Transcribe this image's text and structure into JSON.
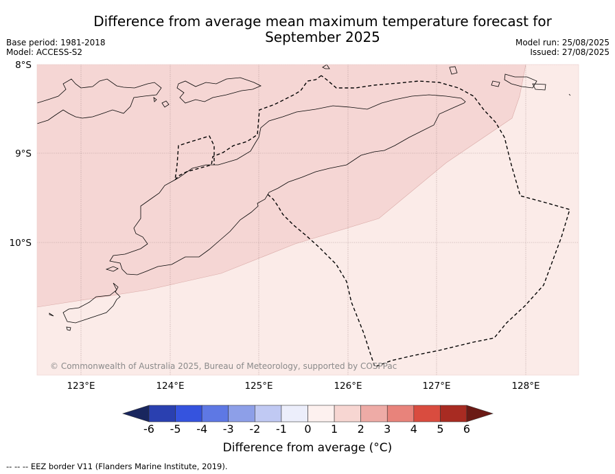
{
  "header": {
    "title_line1": "Difference from average mean maximum temperature forecast for",
    "title_line2": "September 2025",
    "base_period": "Base period: 1981-2018",
    "model": "Model: ACCESS-S2",
    "model_run": "Model run: 25/08/2025",
    "issued": "Issued: 27/08/2025"
  },
  "map": {
    "lat_labels": [
      "8°S",
      "9°S",
      "10°S"
    ],
    "lon_labels": [
      "123°E",
      "124°E",
      "125°E",
      "126°E",
      "127°E",
      "128°E"
    ],
    "copyright": "© Commonwealth of Australia 2025, Bureau of Meteorology, supported by COSPPac",
    "colors": {
      "zone_1_to_2": "#f5d6d4",
      "zone_0_to_1": "#fbebe8",
      "coastline": "#000000",
      "grid": "#b89a9a"
    }
  },
  "colorbar": {
    "tick_labels": [
      "-6",
      "-5",
      "-4",
      "-3",
      "-2",
      "-1",
      "0",
      "1",
      "2",
      "3",
      "4",
      "5",
      "6"
    ],
    "bin_colors": [
      "#19265e",
      "#2a40b0",
      "#3553de",
      "#5e78e4",
      "#8d9fe8",
      "#c0c9f3",
      "#eceefb",
      "#fdf1ef",
      "#f7d6d2",
      "#eeaba6",
      "#e8837b",
      "#d94c3f",
      "#a82b22",
      "#6b1a15"
    ],
    "title": "Difference from average (°C)"
  },
  "footnote": "-- -- -- EEZ border V11 (Flanders Marine Institute, 2019)."
}
